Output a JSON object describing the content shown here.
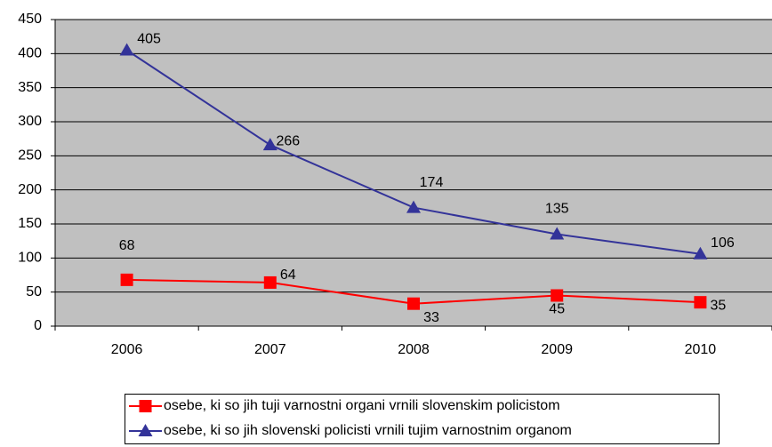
{
  "chart_data": {
    "type": "line",
    "categories": [
      "2006",
      "2007",
      "2008",
      "2009",
      "2010"
    ],
    "series": [
      {
        "name": "osebe, ki so jih tuji varnostni organi vrnili slovenskim policistom",
        "color": "#ff0000",
        "marker": "square",
        "values": [
          68,
          64,
          33,
          45,
          35
        ]
      },
      {
        "name": "osebe, ki so jih slovenski policisti vrnili tujim varnostnim organom",
        "color": "#333399",
        "marker": "triangle",
        "values": [
          405,
          266,
          174,
          135,
          106
        ]
      }
    ],
    "ylim": [
      0,
      450
    ],
    "yticks": [
      0,
      50,
      100,
      150,
      200,
      250,
      300,
      350,
      400,
      450
    ],
    "grid": true,
    "plot_background": "#c0c0c0",
    "legend": "bottom"
  }
}
